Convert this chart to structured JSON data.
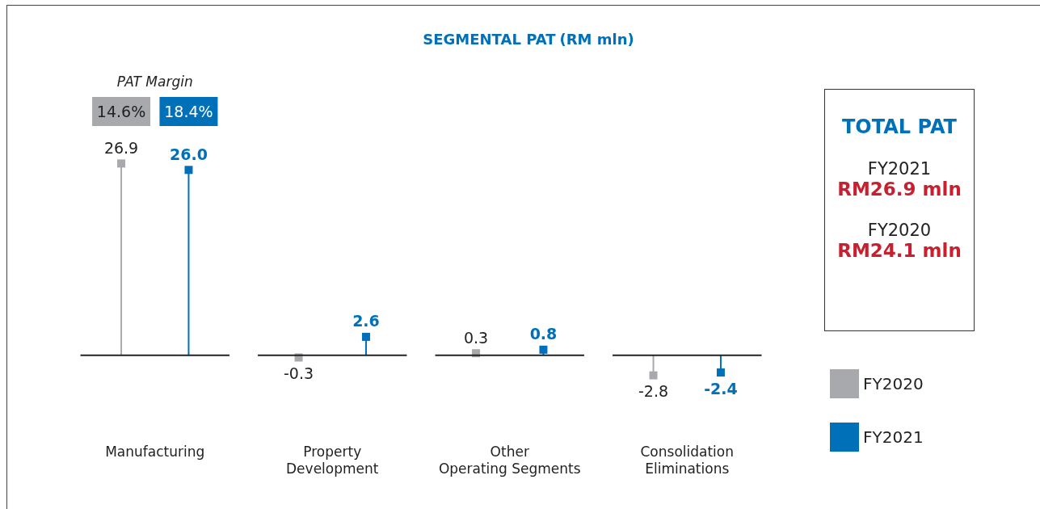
{
  "chart_data": [
    {
      "type": "lollipop",
      "title": "SEGMENTAL PAT",
      "subtitle": "(RM mln)",
      "categories": [
        "Manufacturing",
        "Property\nDevelopment",
        "Other\nOperating Segments",
        "Consolidation\nEliminations"
      ],
      "series": [
        {
          "name": "FY2020",
          "color": "#a7a9ac",
          "values": [
            26.9,
            -0.3,
            0.3,
            -2.8
          ],
          "value_labels": [
            "26.9",
            "-0.3",
            "0.3",
            "-2.8"
          ]
        },
        {
          "name": "FY2021",
          "color": "#0070b8",
          "values": [
            26.0,
            2.6,
            0.8,
            -2.4
          ],
          "value_labels": [
            "26.0",
            "2.6",
            "0.8",
            "-2.4"
          ]
        }
      ],
      "ref_lines": [
        {
          "axis": "y",
          "value": 0,
          "color": "#222222"
        }
      ],
      "marker": "square",
      "legend": "right",
      "annotations": [
        "PAT Margin",
        "14.6%",
        "18.4%"
      ]
    },
    {
      "type": "other",
      "title": "TOTAL PAT",
      "annotations": [
        "FY2021",
        "RM26.9 mln",
        "FY2020",
        "RM24.1 mln"
      ]
    }
  ]
}
